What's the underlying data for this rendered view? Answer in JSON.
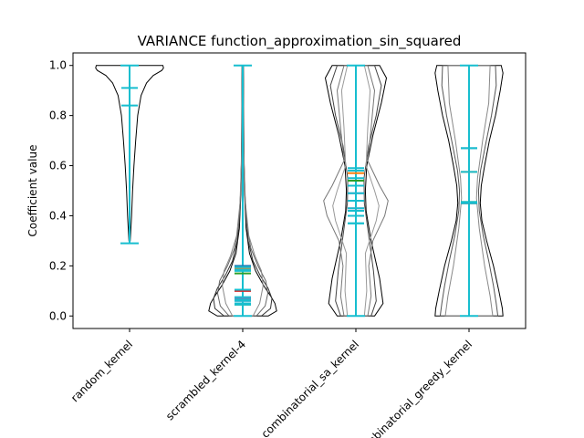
{
  "chart_data": {
    "type": "violin",
    "title": "VARIANCE function_approximation_sin_squared",
    "xlabel": "",
    "ylabel": "Coefficient value",
    "ylim": [
      -0.05,
      1.05
    ],
    "yticks": [
      "0.0",
      "0.2",
      "0.4",
      "0.6",
      "0.8",
      "1.0"
    ],
    "categories": [
      "random_kernel",
      "scrambled_kernel-4",
      "combinatorial_sa_kernel",
      "combinatorial_greedy_kernel"
    ],
    "grid": false,
    "outline_color": "#000000",
    "stat_color": "#17becf",
    "median_colors": [
      "#1f77b4",
      "#ff7f0e",
      "#2ca02c",
      "#d62728",
      "#9467bd",
      "#8c564b",
      "#e377c2",
      "#7f7f7f",
      "#bcbd22",
      "#17becf"
    ],
    "violins": [
      {
        "category": "random_kernel",
        "min": 0.29,
        "max": 1.0,
        "means": [
          0.91,
          0.84
        ],
        "medians": [],
        "shapes": [
          {
            "color": "#000000",
            "profile": [
              [
                0.3,
                0.02
              ],
              [
                0.4,
                0.06
              ],
              [
                0.5,
                0.09
              ],
              [
                0.6,
                0.13
              ],
              [
                0.7,
                0.18
              ],
              [
                0.8,
                0.24
              ],
              [
                0.88,
                0.34
              ],
              [
                0.93,
                0.5
              ],
              [
                0.96,
                0.7
              ],
              [
                0.98,
                0.95
              ],
              [
                0.99,
                1.0
              ],
              [
                1.0,
                0.98
              ]
            ]
          }
        ]
      },
      {
        "category": "scrambled_kernel-4",
        "min": 0.0,
        "max": 1.0,
        "means": [
          0.195,
          0.185,
          0.18,
          0.105,
          0.075,
          0.065,
          0.06,
          0.05,
          0.045
        ],
        "medians": [
          0.2,
          0.19,
          0.17,
          0.1,
          0.07,
          0.065,
          0.06,
          0.05,
          0.045
        ],
        "shapes": [
          {
            "color": "#000000",
            "profile": [
              [
                0.0,
                0.75
              ],
              [
                0.02,
                1.0
              ],
              [
                0.05,
                0.95
              ],
              [
                0.08,
                0.82
              ],
              [
                0.12,
                0.62
              ],
              [
                0.18,
                0.38
              ],
              [
                0.25,
                0.2
              ],
              [
                0.35,
                0.1
              ],
              [
                0.5,
                0.05
              ],
              [
                0.7,
                0.03
              ],
              [
                0.85,
                0.025
              ],
              [
                1.0,
                0.02
              ]
            ]
          },
          {
            "color": "#333333",
            "profile": [
              [
                0.0,
                0.55
              ],
              [
                0.03,
                0.82
              ],
              [
                0.07,
                0.86
              ],
              [
                0.11,
                0.75
              ],
              [
                0.16,
                0.52
              ],
              [
                0.22,
                0.3
              ],
              [
                0.3,
                0.16
              ],
              [
                0.42,
                0.08
              ],
              [
                0.6,
                0.04
              ],
              [
                0.8,
                0.03
              ],
              [
                1.0,
                0.015
              ]
            ]
          },
          {
            "color": "#666666",
            "profile": [
              [
                0.0,
                0.4
              ],
              [
                0.04,
                0.66
              ],
              [
                0.09,
                0.74
              ],
              [
                0.14,
                0.68
              ],
              [
                0.2,
                0.45
              ],
              [
                0.27,
                0.24
              ],
              [
                0.36,
                0.12
              ],
              [
                0.5,
                0.06
              ],
              [
                0.7,
                0.03
              ],
              [
                1.0,
                0.01
              ]
            ]
          },
          {
            "color": "#888888",
            "profile": [
              [
                0.0,
                0.3
              ],
              [
                0.05,
                0.5
              ],
              [
                0.12,
                0.6
              ],
              [
                0.18,
                0.55
              ],
              [
                0.24,
                0.36
              ],
              [
                0.32,
                0.18
              ],
              [
                0.45,
                0.08
              ],
              [
                0.65,
                0.03
              ],
              [
                1.0,
                0.01
              ]
            ]
          }
        ]
      },
      {
        "category": "combinatorial_sa_kernel",
        "min": 0.0,
        "max": 1.0,
        "means": [
          0.59,
          0.58,
          0.55,
          0.52,
          0.49,
          0.46,
          0.43,
          0.42,
          0.4,
          0.37
        ],
        "medians": [
          0.58,
          0.57,
          0.54,
          0.52,
          0.49,
          0.46,
          0.43,
          0.42,
          0.4,
          0.37
        ],
        "shapes": [
          {
            "color": "#000000",
            "profile": [
              [
                0.0,
                0.55
              ],
              [
                0.05,
                0.8
              ],
              [
                0.15,
                0.7
              ],
              [
                0.3,
                0.45
              ],
              [
                0.42,
                0.3
              ],
              [
                0.5,
                0.28
              ],
              [
                0.6,
                0.32
              ],
              [
                0.72,
                0.5
              ],
              [
                0.85,
                0.75
              ],
              [
                0.95,
                0.9
              ],
              [
                1.0,
                0.7
              ]
            ]
          },
          {
            "color": "#444444",
            "profile": [
              [
                0.0,
                0.45
              ],
              [
                0.06,
                0.6
              ],
              [
                0.18,
                0.52
              ],
              [
                0.32,
                0.38
              ],
              [
                0.45,
                0.25
              ],
              [
                0.55,
                0.24
              ],
              [
                0.68,
                0.38
              ],
              [
                0.8,
                0.6
              ],
              [
                0.92,
                0.75
              ],
              [
                1.0,
                0.55
              ]
            ]
          },
          {
            "color": "#777777",
            "profile": [
              [
                0.0,
                0.35
              ],
              [
                0.08,
                0.45
              ],
              [
                0.2,
                0.38
              ],
              [
                0.3,
                0.5
              ],
              [
                0.4,
                0.85
              ],
              [
                0.46,
                0.95
              ],
              [
                0.52,
                0.7
              ],
              [
                0.62,
                0.35
              ],
              [
                0.75,
                0.45
              ],
              [
                0.9,
                0.55
              ],
              [
                1.0,
                0.35
              ]
            ]
          },
          {
            "color": "#999999",
            "profile": [
              [
                0.0,
                0.25
              ],
              [
                0.1,
                0.32
              ],
              [
                0.25,
                0.28
              ],
              [
                0.38,
                0.6
              ],
              [
                0.44,
                0.68
              ],
              [
                0.5,
                0.55
              ],
              [
                0.6,
                0.3
              ],
              [
                0.75,
                0.35
              ],
              [
                0.9,
                0.42
              ],
              [
                1.0,
                0.25
              ]
            ]
          }
        ]
      },
      {
        "category": "combinatorial_greedy_kernel",
        "min": 0.0,
        "max": 1.0,
        "means": [
          0.67,
          0.575,
          0.455,
          0.45
        ],
        "medians": [
          0.67,
          0.575,
          0.455,
          0.45
        ],
        "shapes": [
          {
            "color": "#000000",
            "profile": [
              [
                0.0,
                1.0
              ],
              [
                0.03,
                0.98
              ],
              [
                0.1,
                0.88
              ],
              [
                0.2,
                0.72
              ],
              [
                0.3,
                0.52
              ],
              [
                0.38,
                0.38
              ],
              [
                0.45,
                0.33
              ],
              [
                0.52,
                0.36
              ],
              [
                0.6,
                0.46
              ],
              [
                0.7,
                0.6
              ],
              [
                0.8,
                0.78
              ],
              [
                0.9,
                0.92
              ],
              [
                0.97,
                1.0
              ],
              [
                1.0,
                0.95
              ]
            ]
          },
          {
            "color": "#555555",
            "profile": [
              [
                0.0,
                0.85
              ],
              [
                0.05,
                0.8
              ],
              [
                0.12,
                0.72
              ],
              [
                0.22,
                0.58
              ],
              [
                0.32,
                0.42
              ],
              [
                0.42,
                0.3
              ],
              [
                0.5,
                0.28
              ],
              [
                0.58,
                0.34
              ],
              [
                0.68,
                0.48
              ],
              [
                0.8,
                0.66
              ],
              [
                0.92,
                0.8
              ],
              [
                1.0,
                0.78
              ]
            ]
          },
          {
            "color": "#888888",
            "profile": [
              [
                0.0,
                0.7
              ],
              [
                0.08,
                0.62
              ],
              [
                0.2,
                0.46
              ],
              [
                0.35,
                0.3
              ],
              [
                0.47,
                0.22
              ],
              [
                0.55,
                0.25
              ],
              [
                0.7,
                0.4
              ],
              [
                0.85,
                0.58
              ],
              [
                1.0,
                0.62
              ]
            ]
          }
        ]
      }
    ]
  }
}
